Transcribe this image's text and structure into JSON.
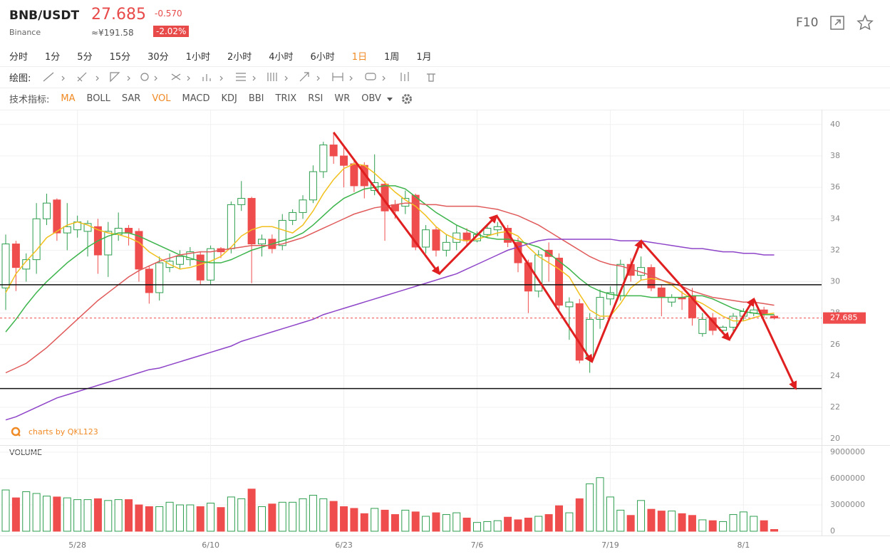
{
  "header": {
    "symbol": "BNB/USDT",
    "exchange": "Binance",
    "price": "27.685",
    "cny": "≈¥191.58",
    "change": "-0.570",
    "change_pct": "-2.02%",
    "f10": "F10"
  },
  "periods": {
    "items": [
      "分时",
      "1分",
      "5分",
      "15分",
      "30分",
      "1小时",
      "2小时",
      "4小时",
      "6小时",
      "1日",
      "1周",
      "1月"
    ],
    "active_index": 9,
    "active_color": "#f08a24"
  },
  "drawing_label": "绘图:",
  "indicators": {
    "label": "技术指标:",
    "items": [
      "MA",
      "BOLL",
      "SAR",
      "VOL",
      "MACD",
      "KDJ",
      "BBI",
      "TRIX",
      "RSI",
      "WR",
      "OBV"
    ],
    "active_indexes": [
      0,
      3
    ],
    "active_color": "#f08a24"
  },
  "watermark": "charts by QKL123",
  "chart_data": {
    "type": "candlestick",
    "categories": [
      null,
      null,
      null,
      null,
      null,
      null,
      null,
      "5/28",
      null,
      null,
      null,
      null,
      null,
      null,
      null,
      null,
      null,
      null,
      null,
      null,
      "6/10",
      null,
      null,
      null,
      null,
      null,
      null,
      null,
      null,
      null,
      null,
      null,
      null,
      "6/23",
      null,
      null,
      null,
      null,
      null,
      null,
      null,
      null,
      null,
      null,
      null,
      null,
      "7/6",
      null,
      null,
      null,
      null,
      null,
      null,
      null,
      null,
      null,
      null,
      null,
      null,
      "7/19",
      null,
      null,
      null,
      null,
      null,
      null,
      null,
      null,
      null,
      null,
      null,
      null,
      "8/1",
      null,
      null,
      null
    ],
    "open": [
      29.6,
      32.4,
      30.8,
      31.4,
      34,
      35.2,
      33.1,
      33.3,
      33.2,
      33.5,
      31.7,
      33.0,
      33.4,
      33.2,
      30.8,
      29.3,
      30.9,
      31.1,
      31.4,
      31.7,
      30.1,
      32.1,
      32.1,
      34.9,
      35.3,
      32.4,
      32.7,
      32.3,
      33.9,
      34.4,
      35.2,
      37,
      38.7,
      38,
      37.5,
      37.4,
      35.8,
      36.2,
      34.9,
      34.8,
      35.5,
      32.2,
      33.3,
      32,
      32.5,
      33.1,
      32.6,
      33,
      33.3,
      33.4,
      32.5,
      31.2,
      29.4,
      32,
      31.5,
      28.4,
      28.6,
      25.1,
      27.6,
      28.9,
      29.1,
      31.1,
      30.4,
      30.9,
      29.6,
      28.7,
      29,
      29.1,
      26.7,
      27.7,
      26.9,
      27.1,
      27.8,
      28,
      28.2,
      27.8
    ],
    "high": [
      33,
      32.6,
      31.8,
      35,
      35.6,
      35.3,
      35,
      34.2,
      33.9,
      34,
      33.8,
      34.4,
      33.6,
      33.4,
      31,
      31.6,
      31.8,
      32,
      32.2,
      31.9,
      32.3,
      32.2,
      35.1,
      36.4,
      35.4,
      33,
      33,
      34.3,
      34.6,
      35.5,
      37.4,
      38.9,
      39.5,
      38.6,
      37.8,
      37.6,
      38.1,
      36.4,
      35.2,
      35.8,
      35.6,
      33.6,
      33.5,
      33,
      33.6,
      33.4,
      33.2,
      33.6,
      33.8,
      33.6,
      32.8,
      31.4,
      32,
      32.5,
      31.8,
      29,
      28.9,
      28,
      29.5,
      29.7,
      31.4,
      31.5,
      31.6,
      31.1,
      29.8,
      29.2,
      29.4,
      29.6,
      28,
      28,
      27.2,
      28,
      28.3,
      28.4,
      28.4,
      27.9
    ],
    "low": [
      28.2,
      29.4,
      30,
      30.5,
      33.6,
      32.6,
      32,
      32.8,
      31.6,
      30.5,
      30.3,
      32.6,
      32.3,
      30,
      28.6,
      28.8,
      30.6,
      30.8,
      31,
      29.8,
      29.8,
      31.5,
      31.8,
      34.5,
      29.9,
      31.6,
      31.8,
      32,
      33.6,
      34,
      35,
      36.6,
      37.5,
      36,
      35.7,
      35.3,
      35.5,
      32.6,
      34,
      34.3,
      32,
      31.8,
      31.6,
      31.6,
      32,
      32.3,
      32.5,
      32.8,
      32.9,
      32.2,
      30.6,
      28,
      29,
      30,
      28,
      26.3,
      24.8,
      24.2,
      27,
      28.5,
      28.8,
      30,
      30.1,
      29.4,
      27.8,
      28.4,
      28.2,
      27.2,
      26.5,
      26.6,
      26.7,
      26.8,
      27.5,
      27.8,
      27.7,
      27.6
    ],
    "close": [
      32.4,
      30.9,
      31.4,
      34.0,
      35,
      33.1,
      33.5,
      33.8,
      33.7,
      31.7,
      33.2,
      33.4,
      33.1,
      30.8,
      29.3,
      31.2,
      31.3,
      31.6,
      31.9,
      30.1,
      32.1,
      31.9,
      34.9,
      35.3,
      32.4,
      32.7,
      32.1,
      33.9,
      34.4,
      35.2,
      37,
      38.7,
      38,
      37.4,
      36.1,
      36.1,
      36.3,
      34.5,
      34.5,
      35.3,
      32.2,
      33.3,
      32,
      32.5,
      33.1,
      32.6,
      33,
      33.4,
      33.5,
      32.5,
      31.2,
      29.4,
      31.7,
      31.6,
      28.5,
      28.7,
      25,
      27.6,
      29,
      29.3,
      31.1,
      30.4,
      30.9,
      29.6,
      29,
      29,
      28.9,
      27.7,
      27.6,
      26.9,
      27.1,
      27.8,
      28.1,
      28.2,
      27.9,
      27.685
    ],
    "up_color": "#2e9e4f",
    "down_color": "#ef4d4d",
    "ma_lines": [
      {
        "color": "#f2c01e",
        "values": [
          29.3,
          30.5,
          31.3,
          32,
          32.8,
          33.2,
          33.6,
          33.8,
          33.6,
          33.3,
          33.1,
          33,
          32.8,
          32.5,
          31.9,
          31.5,
          31.1,
          30.8,
          30.9,
          31.1,
          31.3,
          31.6,
          32.2,
          32.9,
          33.3,
          33.5,
          33.5,
          33.3,
          33.1,
          33.6,
          34.5,
          35.6,
          36.5,
          37.2,
          37.5,
          37.4,
          36.9,
          36.3,
          35.7,
          35.2,
          34.8,
          34.2,
          33.5,
          33,
          32.7,
          32.6,
          32.7,
          32.9,
          33.1,
          33.2,
          32.9,
          32.2,
          31.6,
          31.2,
          30.8,
          30.3,
          29.2,
          28.2,
          27.8,
          27.8,
          28.6,
          29.6,
          30.1,
          30.2,
          30.1,
          29.8,
          29.3,
          28.9,
          28.6,
          28.2,
          27.8,
          27.5,
          27.5,
          27.7,
          27.9,
          28.0
        ]
      },
      {
        "color": "#3cb44b",
        "values": [
          26.8,
          27.6,
          28.5,
          29.3,
          30,
          30.6,
          31.2,
          31.7,
          32.2,
          32.6,
          32.9,
          33.1,
          33.1,
          32.9,
          32.6,
          32.3,
          32,
          31.7,
          31.5,
          31.3,
          31.2,
          31.2,
          31.4,
          31.7,
          32,
          32.2,
          32.4,
          32.6,
          32.8,
          33.1,
          33.6,
          34.2,
          34.8,
          35.3,
          35.6,
          35.9,
          36.0,
          36.1,
          36.1,
          35.9,
          35.4,
          34.9,
          34.4,
          34.0,
          33.6,
          33.3,
          33.0,
          32.8,
          32.7,
          32.7,
          32.6,
          32.4,
          32.2,
          31.8,
          31.3,
          30.8,
          30.2,
          29.7,
          29.4,
          29.2,
          29.1,
          29.1,
          29.1,
          29.0,
          29.0,
          29.0,
          29.0,
          29.1,
          29.1,
          28.9,
          28.6,
          28.3,
          28.1,
          28.0,
          27.9,
          27.9
        ]
      },
      {
        "color": "#e05a5a",
        "values": [
          24.2,
          24.5,
          24.8,
          25.3,
          25.8,
          26.4,
          27,
          27.6,
          28.2,
          28.8,
          29.3,
          29.8,
          30.3,
          30.7,
          31,
          31.3,
          31.5,
          31.7,
          31.8,
          31.9,
          31.9,
          32,
          32.1,
          32.2,
          32.3,
          32.3,
          32.3,
          32.4,
          32.6,
          32.8,
          33.1,
          33.4,
          33.7,
          34,
          34.3,
          34.5,
          34.7,
          34.8,
          34.9,
          35,
          35,
          34.9,
          34.9,
          34.8,
          34.8,
          34.8,
          34.8,
          34.7,
          34.6,
          34.4,
          34.2,
          33.9,
          33.6,
          33.2,
          32.8,
          32.4,
          32,
          31.6,
          31.3,
          31.1,
          31,
          30.8,
          30.6,
          30.4,
          30.1,
          29.9,
          29.7,
          29.4,
          29.2,
          29,
          28.9,
          28.8,
          28.7,
          28.7,
          28.6,
          28.5
        ]
      },
      {
        "color": "#8e44c8",
        "values": [
          21.2,
          21.4,
          21.7,
          22,
          22.3,
          22.6,
          22.8,
          23,
          23.2,
          23.4,
          23.6,
          23.8,
          24,
          24.2,
          24.4,
          24.5,
          24.7,
          24.9,
          25.1,
          25.3,
          25.5,
          25.7,
          25.9,
          26.2,
          26.4,
          26.6,
          26.8,
          27,
          27.2,
          27.4,
          27.6,
          27.9,
          28.1,
          28.3,
          28.5,
          28.7,
          28.9,
          29.1,
          29.3,
          29.5,
          29.7,
          29.9,
          30.1,
          30.3,
          30.5,
          30.8,
          31.1,
          31.4,
          31.7,
          32,
          32.2,
          32.4,
          32.6,
          32.7,
          32.7,
          32.7,
          32.7,
          32.7,
          32.7,
          32.7,
          32.6,
          32.6,
          32.6,
          32.5,
          32.4,
          32.3,
          32.2,
          32.1,
          32.1,
          32,
          31.9,
          31.9,
          31.8,
          31.8,
          31.7,
          31.7
        ]
      }
    ],
    "hlines": [
      29.8,
      23.2
    ],
    "last_price": 27.685,
    "arrows": {
      "color": "#e02020",
      "x": [
        32,
        42.3,
        47.9,
        57.2,
        62,
        70.6,
        73,
        77.1
      ],
      "y": [
        39.5,
        30.5,
        34.2,
        24.9,
        32.6,
        26.3,
        28.9,
        23.2
      ]
    },
    "ylim": [
      19.6,
      40.9
    ],
    "yticks": [
      20,
      22,
      24,
      26,
      28,
      30,
      32,
      34,
      36,
      38,
      40
    ],
    "grid": true,
    "volume": {
      "title": "VOLUME",
      "values": [
        4700000,
        3800000,
        4500000,
        4300000,
        4000000,
        3900000,
        3800000,
        3600000,
        3600000,
        3700000,
        3500000,
        3600000,
        3600000,
        3000000,
        2800000,
        2800000,
        3300000,
        3000000,
        3000000,
        2800000,
        3200000,
        2700000,
        3900000,
        3700000,
        4800000,
        2800000,
        3100000,
        3300000,
        3300000,
        3700000,
        4100000,
        3700000,
        3400000,
        2800000,
        2600000,
        2000000,
        2600000,
        2400000,
        1900000,
        2400000,
        2200000,
        1700000,
        2100000,
        1900000,
        2100000,
        1500000,
        1000000,
        1100000,
        1200000,
        1600000,
        1300000,
        1500000,
        1700000,
        1900000,
        2900000,
        2100000,
        3700000,
        5400000,
        6100000,
        3900000,
        2400000,
        1800000,
        3500000,
        2500000,
        2300000,
        2300000,
        2000000,
        1800000,
        1300000,
        1200000,
        1100000,
        1900000,
        2200000,
        1700000,
        1200000,
        200000
      ],
      "ylim": [
        0,
        9730000
      ],
      "yticks": [
        0,
        3000000,
        6000000,
        9000000
      ]
    }
  }
}
